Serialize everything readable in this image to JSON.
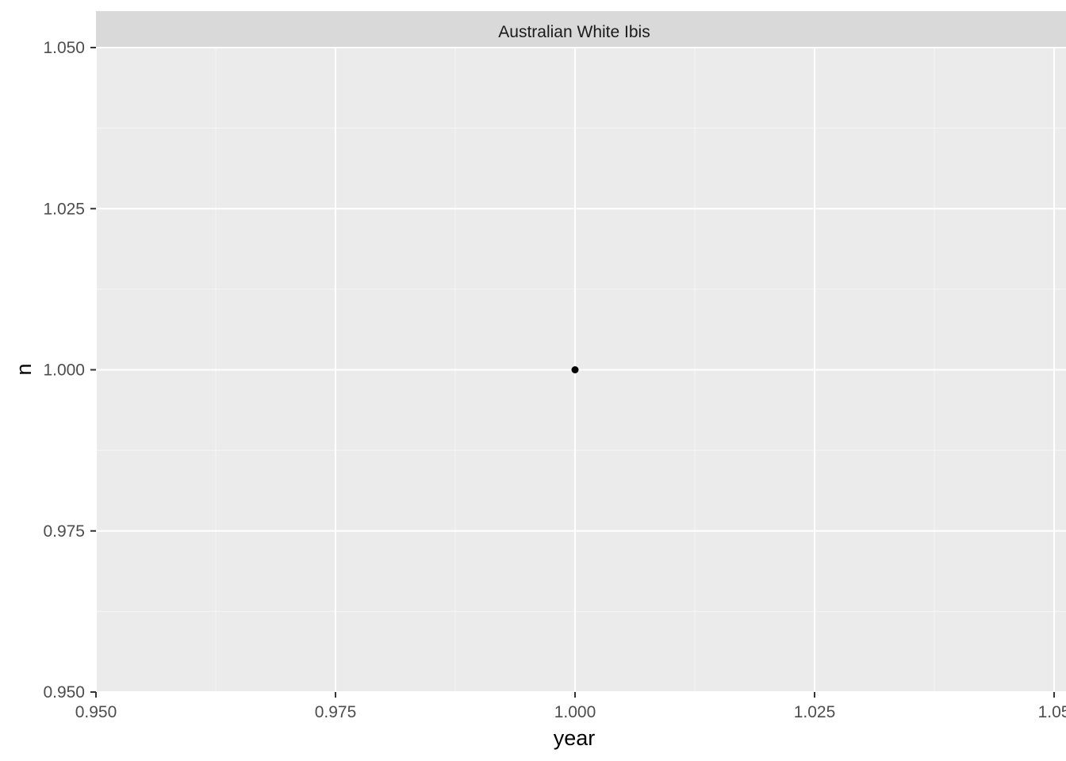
{
  "chart_data": {
    "type": "scatter",
    "facet": "Australian White Ibis",
    "xlabel": "year",
    "ylabel": "n",
    "xlim": [
      0.95,
      1.05
    ],
    "ylim": [
      0.95,
      1.05
    ],
    "x_ticks": [
      0.95,
      0.975,
      1.0,
      1.025,
      1.05
    ],
    "x_tick_labels": [
      "0.950",
      "0.975",
      "1.000",
      "1.025",
      "1.05"
    ],
    "y_ticks": [
      0.95,
      0.975,
      1.0,
      1.025,
      1.05
    ],
    "y_tick_labels": [
      "0.950",
      "0.975",
      "1.000",
      "1.025",
      "1.050"
    ],
    "grid": true,
    "series": [
      {
        "name": "Australian White Ibis",
        "points": [
          {
            "x": 1.0,
            "y": 1.0
          }
        ]
      }
    ],
    "colors": {
      "panel_background": "#ebebeb",
      "strip_background": "#d9d9d9",
      "grid_major": "#ffffff",
      "grid_minor": "#f5f5f5",
      "point": "#000000",
      "tick": "#333333"
    }
  }
}
